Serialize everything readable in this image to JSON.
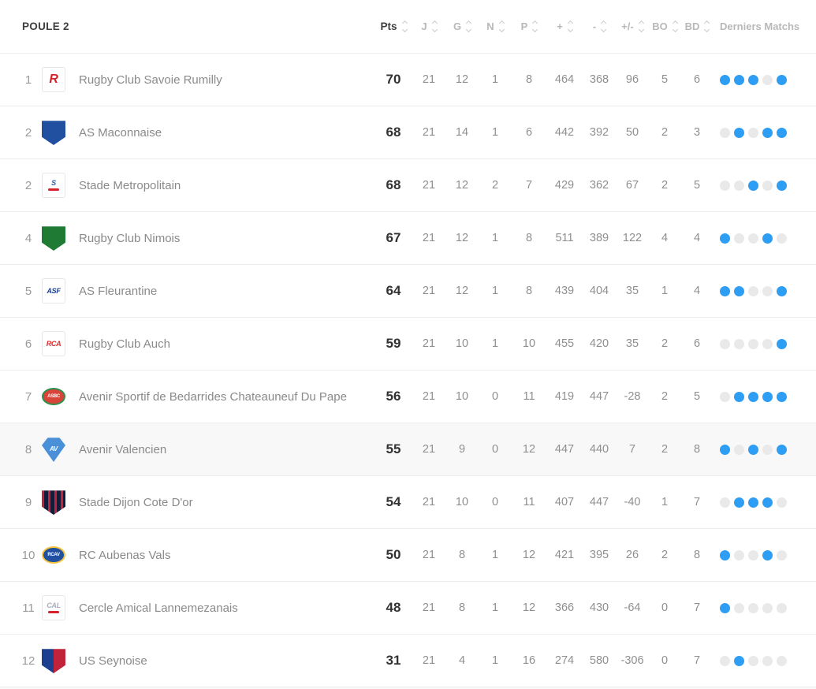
{
  "header": {
    "title": "POULE 2",
    "columns": [
      {
        "key": "pts",
        "label": "Pts",
        "sortable": true,
        "dark": true
      },
      {
        "key": "j",
        "label": "J",
        "sortable": true
      },
      {
        "key": "g",
        "label": "G",
        "sortable": true
      },
      {
        "key": "n",
        "label": "N",
        "sortable": true
      },
      {
        "key": "p",
        "label": "P",
        "sortable": true
      },
      {
        "key": "plus",
        "label": "+",
        "sortable": true
      },
      {
        "key": "minus",
        "label": "-",
        "sortable": true
      },
      {
        "key": "diff",
        "label": "+/-",
        "sortable": true
      },
      {
        "key": "bo",
        "label": "BO",
        "sortable": true
      },
      {
        "key": "bd",
        "label": "BD",
        "sortable": true
      },
      {
        "key": "derniers",
        "label": "Derniers Matchs",
        "sortable": false
      }
    ]
  },
  "colors": {
    "dot_on": "#2e9df4",
    "dot_off": "#e9e9e9",
    "row_highlight": "#f8f8f8"
  },
  "table": {
    "stat_keys": [
      "pts",
      "j",
      "g",
      "n",
      "p",
      "plus",
      "minus",
      "diff",
      "bo",
      "bd"
    ],
    "rows": [
      {
        "rank": "1",
        "team": "Rugby Club Savoie Rumilly",
        "pts": "70",
        "j": "21",
        "g": "12",
        "n": "1",
        "p": "8",
        "plus": "464",
        "minus": "368",
        "diff": "96",
        "bo": "5",
        "bd": "6",
        "last5": [
          1,
          1,
          1,
          0,
          1
        ],
        "highlight": false,
        "logo": {
          "shape": "tile",
          "c1": "#ffffff",
          "text": "R",
          "tc": "#d6232b",
          "single": true
        }
      },
      {
        "rank": "2",
        "team": "AS Maconnaise",
        "pts": "68",
        "j": "21",
        "g": "14",
        "n": "1",
        "p": "6",
        "plus": "442",
        "minus": "392",
        "diff": "50",
        "bo": "2",
        "bd": "3",
        "last5": [
          0,
          1,
          0,
          1,
          1
        ],
        "highlight": false,
        "logo": {
          "shape": "shield",
          "c1": "#2150a0",
          "c2": "#d6232b"
        }
      },
      {
        "rank": "2",
        "team": "Stade Metropolitain",
        "pts": "68",
        "j": "21",
        "g": "12",
        "n": "2",
        "p": "7",
        "plus": "429",
        "minus": "362",
        "diff": "67",
        "bo": "2",
        "bd": "5",
        "last5": [
          0,
          0,
          1,
          0,
          1
        ],
        "highlight": false,
        "logo": {
          "shape": "tile",
          "c1": "#ffffff",
          "text": "S",
          "tc": "#2a5caa",
          "bar": "#d6232b"
        }
      },
      {
        "rank": "4",
        "team": "Rugby Club Nimois",
        "pts": "67",
        "j": "21",
        "g": "12",
        "n": "1",
        "p": "8",
        "plus": "511",
        "minus": "389",
        "diff": "122",
        "bo": "4",
        "bd": "4",
        "last5": [
          1,
          0,
          0,
          1,
          0
        ],
        "highlight": false,
        "logo": {
          "shape": "shield",
          "c1": "#1f7a33",
          "c2": "#ffffff"
        }
      },
      {
        "rank": "5",
        "team": "AS Fleurantine",
        "pts": "64",
        "j": "21",
        "g": "12",
        "n": "1",
        "p": "8",
        "plus": "439",
        "minus": "404",
        "diff": "35",
        "bo": "1",
        "bd": "4",
        "last5": [
          1,
          1,
          0,
          0,
          1
        ],
        "highlight": false,
        "logo": {
          "shape": "tile",
          "c1": "#ffffff",
          "text": "ASF",
          "tc": "#1d3f8f"
        }
      },
      {
        "rank": "6",
        "team": "Rugby Club Auch",
        "pts": "59",
        "j": "21",
        "g": "10",
        "n": "1",
        "p": "10",
        "plus": "455",
        "minus": "420",
        "diff": "35",
        "bo": "2",
        "bd": "6",
        "last5": [
          0,
          0,
          0,
          0,
          1
        ],
        "highlight": false,
        "logo": {
          "shape": "tile",
          "c1": "#ffffff",
          "text": "RCA",
          "tc": "#e02a2a"
        }
      },
      {
        "rank": "7",
        "team": "Avenir Sportif de Bedarrides Chateauneuf Du Pape",
        "pts": "56",
        "j": "21",
        "g": "10",
        "n": "0",
        "p": "11",
        "plus": "419",
        "minus": "447",
        "diff": "-28",
        "bo": "2",
        "bd": "5",
        "last5": [
          0,
          1,
          1,
          1,
          1
        ],
        "highlight": false,
        "logo": {
          "shape": "oval",
          "c1": "#d8433a",
          "c2": "#2c8f4e",
          "text": "ASBC",
          "tc": "#ffffff"
        }
      },
      {
        "rank": "8",
        "team": "Avenir Valencien",
        "pts": "55",
        "j": "21",
        "g": "9",
        "n": "0",
        "p": "12",
        "plus": "447",
        "minus": "440",
        "diff": "7",
        "bo": "2",
        "bd": "8",
        "last5": [
          1,
          0,
          1,
          0,
          1
        ],
        "highlight": true,
        "logo": {
          "shape": "diamond",
          "c1": "#4a90d9",
          "text": "AV",
          "tc": "#ffffff"
        }
      },
      {
        "rank": "9",
        "team": "Stade Dijon Cote D'or",
        "pts": "54",
        "j": "21",
        "g": "10",
        "n": "0",
        "p": "11",
        "plus": "407",
        "minus": "447",
        "diff": "-40",
        "bo": "1",
        "bd": "7",
        "last5": [
          0,
          1,
          1,
          1,
          0
        ],
        "highlight": false,
        "logo": {
          "shape": "stripes",
          "c1": "#131c38",
          "c2": "#c0233a"
        }
      },
      {
        "rank": "10",
        "team": "RC Aubenas Vals",
        "pts": "50",
        "j": "21",
        "g": "8",
        "n": "1",
        "p": "12",
        "plus": "421",
        "minus": "395",
        "diff": "26",
        "bo": "2",
        "bd": "8",
        "last5": [
          1,
          0,
          0,
          1,
          0
        ],
        "highlight": false,
        "logo": {
          "shape": "oval",
          "c1": "#2150a0",
          "c2": "#f2c23a",
          "text": "RCAV",
          "tc": "#ffffff"
        }
      },
      {
        "rank": "11",
        "team": "Cercle Amical Lannemezanais",
        "pts": "48",
        "j": "21",
        "g": "8",
        "n": "1",
        "p": "12",
        "plus": "366",
        "minus": "430",
        "diff": "-64",
        "bo": "0",
        "bd": "7",
        "last5": [
          1,
          0,
          0,
          0,
          0
        ],
        "highlight": false,
        "logo": {
          "shape": "tile",
          "c1": "#ffffff",
          "text": "CAL",
          "tc": "#a8adb8",
          "bar": "#d6232b"
        }
      },
      {
        "rank": "12",
        "team": "US Seynoise",
        "pts": "31",
        "j": "21",
        "g": "4",
        "n": "1",
        "p": "16",
        "plus": "274",
        "minus": "580",
        "diff": "-306",
        "bo": "0",
        "bd": "7",
        "last5": [
          0,
          1,
          0,
          0,
          0
        ],
        "highlight": false,
        "logo": {
          "shape": "shield-split",
          "c1": "#1d3f8f",
          "c2": "#c0233a"
        }
      }
    ]
  }
}
